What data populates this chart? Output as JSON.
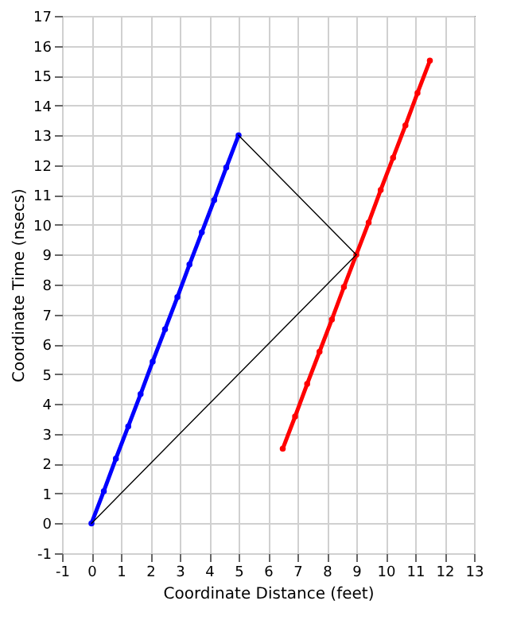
{
  "chart_data": {
    "type": "line",
    "xlabel": "Coordinate Distance (feet)",
    "ylabel": "Coordinate Time (nsecs)",
    "xlim": [
      -1,
      13
    ],
    "xticks": [
      -1,
      0,
      1,
      2,
      3,
      4,
      5,
      6,
      7,
      8,
      9,
      10,
      11,
      12,
      13
    ],
    "ylim": [
      -1,
      17
    ],
    "yticks": [
      -1,
      0,
      1,
      2,
      3,
      4,
      5,
      6,
      7,
      8,
      9,
      10,
      11,
      12,
      13,
      14,
      15,
      16,
      17
    ],
    "grid": true,
    "marker": "circle",
    "line_style": "solid",
    "series": [
      {
        "color": "#0000ff",
        "x": [
          0,
          0.42,
          0.83,
          1.25,
          1.67,
          2.08,
          2.5,
          2.92,
          3.33,
          3.75,
          4.17,
          4.58,
          5
        ],
        "values": [
          0,
          1.08,
          2.17,
          3.25,
          4.33,
          5.42,
          6.5,
          7.58,
          8.67,
          9.75,
          10.83,
          11.92,
          13
        ]
      },
      {
        "color": "#ff0000",
        "x": [
          6.5,
          6.92,
          7.33,
          7.75,
          8.17,
          8.58,
          9,
          9.42,
          9.83,
          10.25,
          10.67,
          11.08,
          11.5
        ],
        "values": [
          2.5,
          3.58,
          4.67,
          5.75,
          6.83,
          7.92,
          9,
          10.08,
          11.17,
          12.25,
          13.33,
          14.42,
          15.5
        ]
      },
      {
        "color": "#000000",
        "marker": "none",
        "x": [
          0,
          9
        ],
        "values": [
          0,
          9
        ]
      },
      {
        "color": "#000000",
        "marker": "none",
        "x": [
          5,
          9
        ],
        "values": [
          13,
          9
        ]
      }
    ]
  }
}
